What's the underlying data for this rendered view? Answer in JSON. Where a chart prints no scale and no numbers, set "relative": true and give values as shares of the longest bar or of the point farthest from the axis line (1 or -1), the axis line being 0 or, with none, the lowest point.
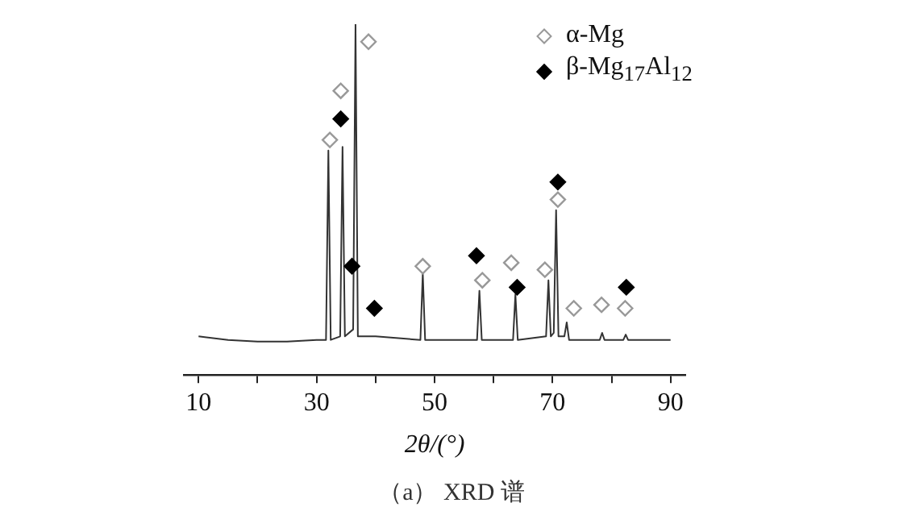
{
  "chart_data": {
    "type": "line",
    "relative": true,
    "xlabel": "2θ/(°)",
    "annotations": [
      "（a） XRD 谱"
    ],
    "xlim": [
      7.5,
      92.5
    ],
    "xticks": [
      10,
      {
        "value": 20,
        "label": null
      },
      30,
      {
        "value": 40,
        "label": null
      },
      50,
      {
        "value": 60,
        "label": null
      },
      70,
      {
        "value": 80,
        "label": null
      },
      90
    ],
    "grid": false,
    "legend": "top right",
    "tick_labels": "x",
    "series": [
      {
        "type": "line",
        "color": "#333333",
        "marker": "none",
        "x": [
          10,
          15,
          20,
          25,
          30,
          31.6,
          32,
          32.4,
          34,
          34.4,
          34.8,
          36.2,
          36.6,
          37,
          40,
          47.6,
          48,
          48.4,
          57.2,
          57.6,
          58,
          63.3,
          63.7,
          64.1,
          68.9,
          69.3,
          69.7,
          70.2,
          70.6,
          71,
          72,
          72.4,
          72.8,
          78,
          78.4,
          78.8,
          82,
          82.4,
          82.8,
          86,
          90
        ],
        "values": [
          0.11,
          0.1,
          0.095,
          0.095,
          0.1,
          0.1,
          0.64,
          0.1,
          0.11,
          0.65,
          0.11,
          0.13,
          1,
          0.11,
          0.11,
          0.1,
          0.29,
          0.1,
          0.1,
          0.24,
          0.1,
          0.1,
          0.23,
          0.1,
          0.11,
          0.27,
          0.11,
          0.12,
          0.47,
          0.11,
          0.11,
          0.15,
          0.1,
          0.1,
          0.12,
          0.1,
          0.1,
          0.115,
          0.1,
          0.1,
          0.1
        ]
      },
      {
        "type": "scatter",
        "name": "α-Mg",
        "color": "#999999",
        "marker": "diamond",
        "x": [
          32.25,
          34.1,
          38.8,
          48.0,
          58.1,
          63.0,
          68.7,
          70.9,
          73.6,
          78.3,
          82.3
        ],
        "values": [
          0.67,
          0.81,
          0.95,
          0.31,
          0.27,
          0.32,
          0.3,
          0.5,
          0.19,
          0.2,
          0.19
        ]
      },
      {
        "type": "scatter",
        "name": "β-Mg$_{17}$Al$_{12}$",
        "color": "#000000",
        "marker": "diamond",
        "x": [
          34.1,
          36.0,
          39.8,
          57.1,
          64.0,
          70.9,
          82.5
        ],
        "values": [
          0.73,
          0.31,
          0.19,
          0.34,
          0.25,
          0.55,
          0.25
        ]
      }
    ]
  }
}
